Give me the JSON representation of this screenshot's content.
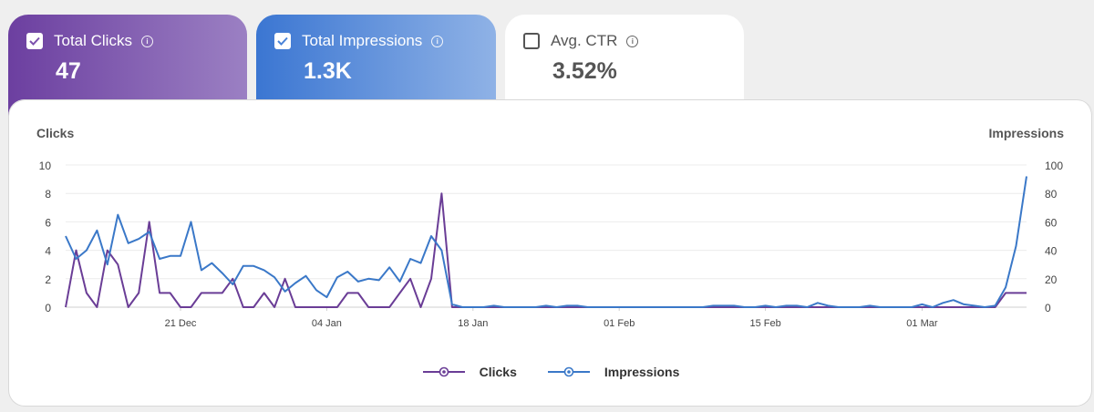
{
  "cards": [
    {
      "label": "Total Clicks",
      "value": "47",
      "checked": true
    },
    {
      "label": "Total Impressions",
      "value": "1.3K",
      "checked": true
    },
    {
      "label": "Avg. CTR",
      "value": "3.52%",
      "checked": false
    }
  ],
  "icons": {
    "checkbox": "check-icon",
    "info": "info-icon",
    "info_glyph": "i"
  },
  "colors": {
    "clicks": "#6a3d96",
    "impressions": "#3a78c8",
    "clicks_card": "#7c52ad",
    "impressions_card": "#4a83d8"
  },
  "chart_data": {
    "type": "line",
    "y_left_label": "Clicks",
    "y_right_label": "Impressions",
    "y_left_ticks": [
      "0",
      "2",
      "4",
      "6",
      "8",
      "10"
    ],
    "y_right_ticks": [
      "0",
      "20",
      "40",
      "60",
      "80",
      "100"
    ],
    "y_left_range": [
      0,
      10
    ],
    "y_right_range": [
      0,
      100
    ],
    "x_start_date": "2023-12-10",
    "x_tick_labels": [
      "21 Dec",
      "04 Jan",
      "18 Jan",
      "01 Feb",
      "15 Feb",
      "01 Mar"
    ],
    "x_tick_dates": [
      "2023-12-21",
      "2024-01-04",
      "2024-01-18",
      "2024-02-01",
      "2024-02-15",
      "2024-03-01"
    ],
    "grid": "horizontal",
    "legend_position": "bottom-center",
    "series": [
      {
        "name": "Clicks",
        "axis": "left",
        "values": [
          0,
          4,
          1,
          0,
          4,
          3,
          0,
          1,
          6,
          1,
          1,
          0,
          0,
          1,
          1,
          1,
          2,
          0,
          0,
          1,
          0,
          2,
          0,
          0,
          0,
          0,
          0,
          1,
          1,
          0,
          0,
          0,
          1,
          2,
          0,
          2,
          8,
          0,
          0,
          0,
          0,
          0,
          0,
          0,
          0,
          0,
          0,
          0,
          0,
          0,
          0,
          0,
          0,
          0,
          0,
          0,
          0,
          0,
          0,
          0,
          0,
          0,
          0,
          0,
          0,
          0,
          0,
          0,
          0,
          0,
          0,
          0,
          0,
          0,
          0,
          0,
          0,
          0,
          0,
          0,
          0,
          0,
          0,
          0,
          0,
          0,
          0,
          0,
          0,
          0,
          1,
          1,
          1
        ]
      },
      {
        "name": "Impressions",
        "axis": "right",
        "values": [
          50,
          34,
          40,
          54,
          30,
          65,
          45,
          48,
          53,
          34,
          36,
          36,
          60,
          26,
          31,
          24,
          16,
          29,
          29,
          26,
          21,
          11,
          17,
          22,
          12,
          7,
          21,
          25,
          18,
          20,
          19,
          28,
          18,
          34,
          31,
          50,
          40,
          2,
          0,
          0,
          0,
          1,
          0,
          0,
          0,
          0,
          1,
          0,
          1,
          1,
          0,
          0,
          0,
          0,
          0,
          0,
          0,
          0,
          0,
          0,
          0,
          0,
          1,
          1,
          1,
          0,
          0,
          1,
          0,
          1,
          1,
          0,
          3,
          1,
          0,
          0,
          0,
          1,
          0,
          0,
          0,
          0,
          2,
          0,
          3,
          5,
          2,
          1,
          0,
          1,
          14,
          43,
          92
        ]
      }
    ]
  }
}
